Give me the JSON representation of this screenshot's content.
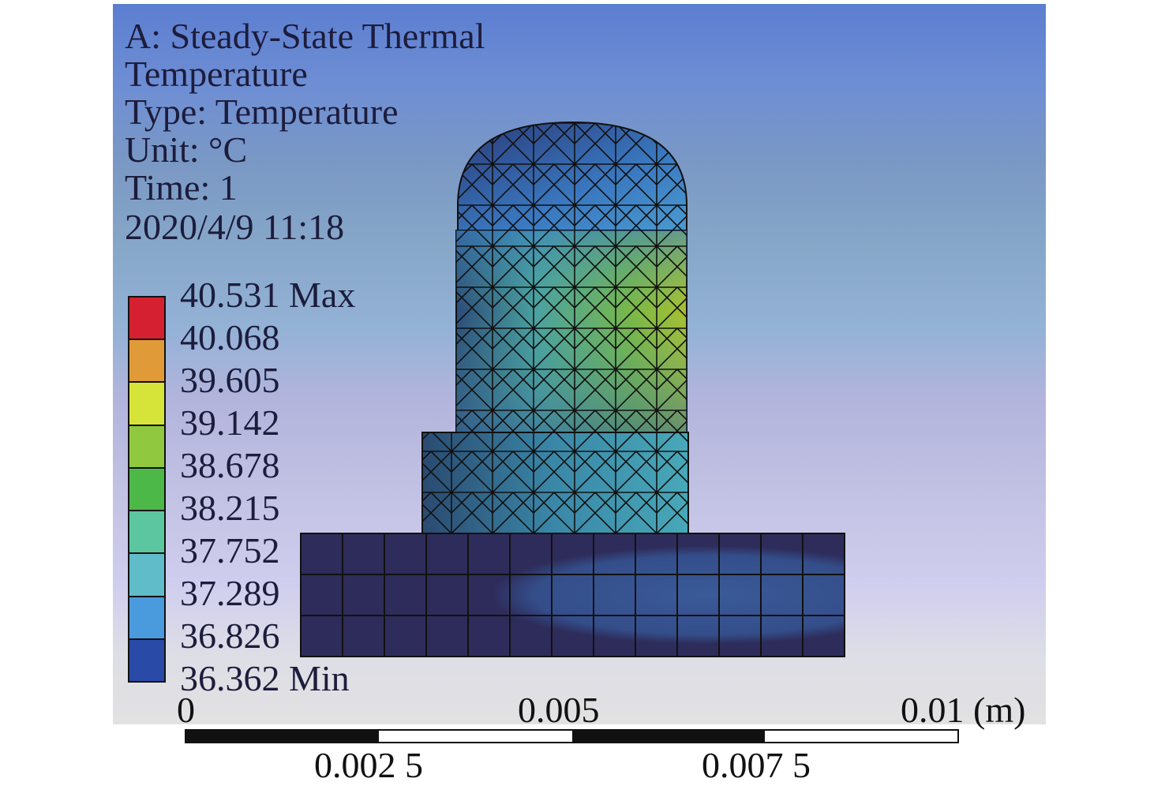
{
  "header": {
    "analysis": "A: Steady-State Thermal",
    "result": "Temperature",
    "type": "Type: Temperature",
    "unit": "Unit: °C",
    "time": "Time: 1",
    "date": "2020/4/9 11:18"
  },
  "legend": {
    "labels": [
      "40.531 Max",
      "40.068",
      "39.605",
      "39.142",
      "38.678",
      "38.215",
      "37.752",
      "37.289",
      "36.826",
      "36.362 Min"
    ],
    "colors": [
      "#d42030",
      "#e09a38",
      "#d6e43a",
      "#90c840",
      "#4cb848",
      "#5cc6a0",
      "#60bcc8",
      "#4a9ade",
      "#2a4aa8"
    ]
  },
  "scale": {
    "top_labels": [
      "0",
      "0.005",
      "0.01 (m)"
    ],
    "bottom_labels": [
      "0.002 5",
      "0.007 5"
    ]
  }
}
